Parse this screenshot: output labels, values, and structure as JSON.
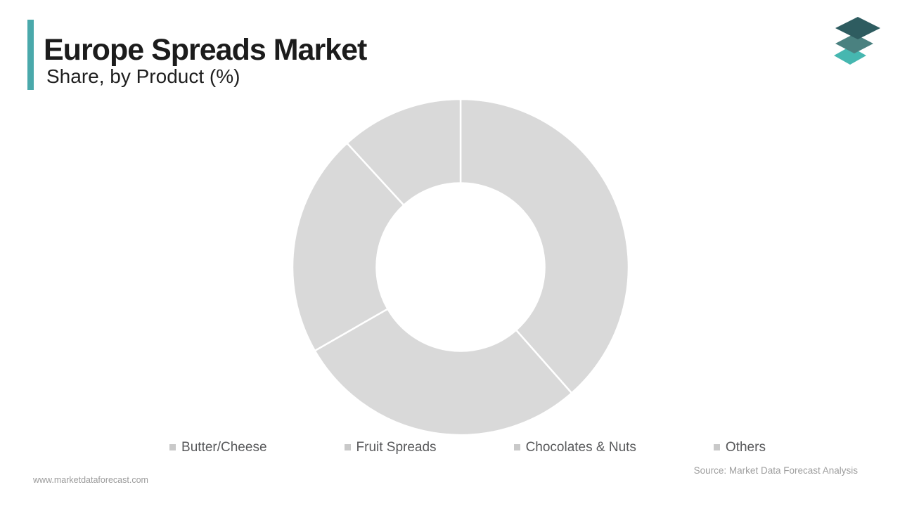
{
  "page": {
    "background": "#ffffff",
    "accent_color": "#4aa9ab"
  },
  "header": {
    "title": "Europe Spreads Market",
    "subtitle": "Share, by Product (%)"
  },
  "logo": {
    "layer_colors_top_to_bottom": [
      "#2e5c60",
      "#4a8180",
      "#46b7b0"
    ]
  },
  "chart_data": {
    "type": "pie",
    "variant": "donut",
    "title": "Europe Spreads Market",
    "subtitle": "Share, by Product (%)",
    "categories": [
      "Butter/Cheese",
      "Fruit Spreads",
      "Chocolates & Nuts",
      "Others"
    ],
    "values": [
      38.5,
      28.2,
      21.5,
      11.8
    ],
    "unit": "%",
    "start_angle_deg": 0,
    "direction": "clockwise",
    "inner_radius_ratio": 0.5,
    "slice_colors": [
      "#d9d9d9",
      "#d9d9d9",
      "#d9d9d9",
      "#d9d9d9"
    ],
    "separator_color": "#ffffff",
    "legend_position": "bottom",
    "legend_marker_color": "#c9c9c9",
    "data_labels": "none"
  },
  "footer": {
    "website": "www.marketdataforecast.com",
    "source": "Source: Market Data Forecast Analysis"
  }
}
